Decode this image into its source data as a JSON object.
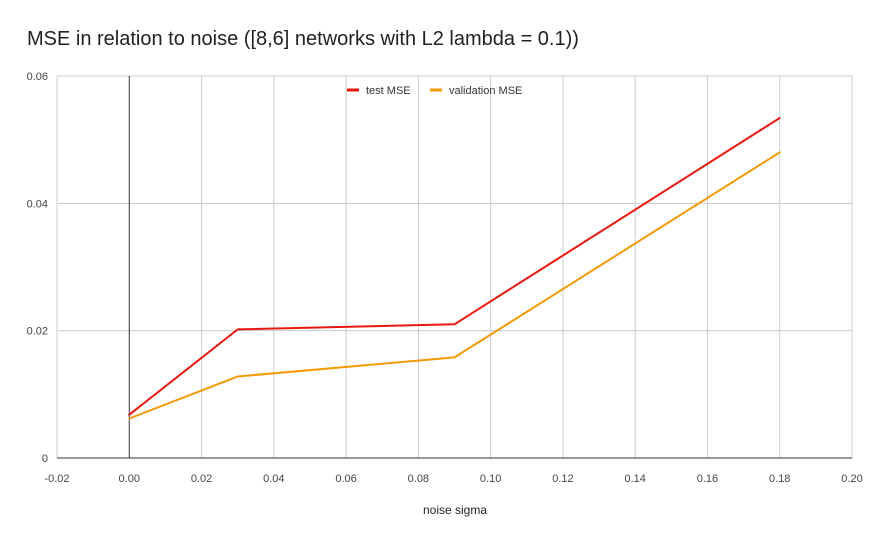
{
  "chart_data": {
    "type": "line",
    "title": "MSE in relation to noise ([8,6] networks with L2 lambda = 0.1))",
    "xlabel": "noise sigma",
    "ylabel": "",
    "xlim": [
      -0.02,
      0.2
    ],
    "ylim": [
      0,
      0.06
    ],
    "x_ticks": [
      "-0.02",
      "0.00",
      "0.02",
      "0.04",
      "0.06",
      "0.08",
      "0.10",
      "0.12",
      "0.14",
      "0.16",
      "0.18",
      "0.20"
    ],
    "y_ticks": [
      "0",
      "0.02",
      "0.04",
      "0.06"
    ],
    "grid": true,
    "legend_position": "top-center",
    "x": [
      0.0,
      0.03,
      0.09,
      0.18
    ],
    "series": [
      {
        "name": "test MSE",
        "color": "#e8170f",
        "values": [
          0.0068,
          0.0202,
          0.021,
          0.0534
        ]
      },
      {
        "name": "validation MSE",
        "color": "#f59a07",
        "values": [
          0.0062,
          0.0128,
          0.0158,
          0.048
        ]
      }
    ]
  }
}
